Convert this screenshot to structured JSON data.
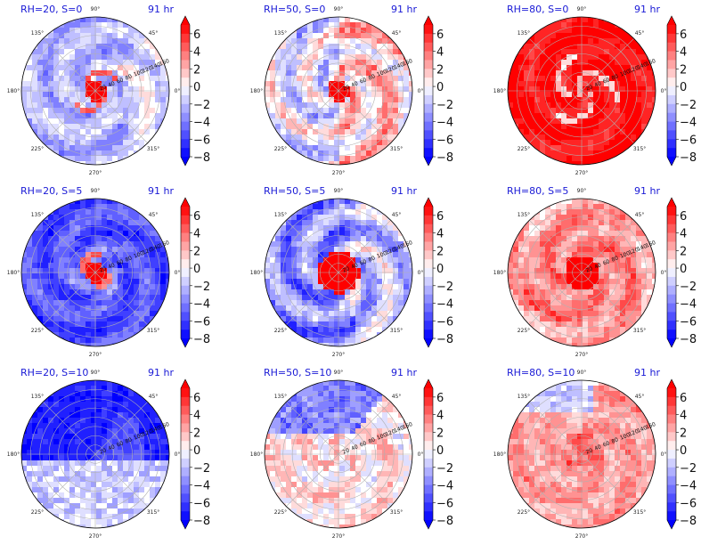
{
  "figure": {
    "time_label": "91 hr",
    "colormap": [
      "#0000ff",
      "#ffffff",
      "#ff0000"
    ]
  },
  "chart_data": [
    {
      "type": "heatmap",
      "projection": "polar",
      "title": "RH=20, S=0",
      "rh": 20,
      "s": 0,
      "pattern": "neutral_spiral",
      "angular_ticks": [
        "0°",
        "45°",
        "90°",
        "135°",
        "180°",
        "225°",
        "270°",
        "315°"
      ],
      "radial_ticks": [
        20,
        40,
        60,
        80,
        100,
        120,
        140,
        160
      ],
      "colorbar": {
        "ticks": [
          6,
          4,
          2,
          0,
          -2,
          -4,
          -6,
          -8
        ],
        "range": [
          -8,
          7
        ],
        "extend": "both"
      }
    },
    {
      "type": "heatmap",
      "projection": "polar",
      "title": "RH=50, S=0",
      "rh": 50,
      "s": 0,
      "pattern": "mixed_halves",
      "angular_ticks": [
        "0°",
        "45°",
        "90°",
        "135°",
        "180°",
        "225°",
        "270°",
        "315°"
      ],
      "radial_ticks": [
        20,
        40,
        60,
        80,
        100,
        120,
        140,
        160
      ],
      "colorbar": {
        "ticks": [
          6,
          4,
          2,
          0,
          -2,
          -4,
          -6,
          -8
        ],
        "range": [
          -8,
          7
        ],
        "extend": "both"
      }
    },
    {
      "type": "heatmap",
      "projection": "polar",
      "title": "RH=80, S=0",
      "rh": 80,
      "s": 0,
      "pattern": "warm",
      "angular_ticks": [
        "0°",
        "45°",
        "90°",
        "135°",
        "180°",
        "225°",
        "270°",
        "315°"
      ],
      "radial_ticks": [
        20,
        40,
        60,
        80,
        100,
        120,
        140,
        160
      ],
      "colorbar": {
        "ticks": [
          6,
          4,
          2,
          0,
          -2,
          -4,
          -6,
          -8
        ],
        "range": [
          -8,
          7
        ],
        "extend": "both"
      }
    },
    {
      "type": "heatmap",
      "projection": "polar",
      "title": "RH=20, S=5",
      "rh": 20,
      "s": 5,
      "pattern": "cold_core_warm",
      "angular_ticks": [
        "0°",
        "45°",
        "90°",
        "135°",
        "180°",
        "225°",
        "270°",
        "315°"
      ],
      "radial_ticks": [
        20,
        40,
        60,
        80,
        100,
        120,
        140,
        160
      ],
      "colorbar": {
        "ticks": [
          6,
          4,
          2,
          0,
          -2,
          -4,
          -6,
          -8
        ],
        "range": [
          -8,
          7
        ],
        "extend": "both"
      }
    },
    {
      "type": "heatmap",
      "projection": "polar",
      "title": "RH=50, S=5",
      "rh": 50,
      "s": 5,
      "pattern": "cool_spiral_core",
      "angular_ticks": [
        "0°",
        "45°",
        "90°",
        "135°",
        "180°",
        "225°",
        "270°",
        "315°"
      ],
      "radial_ticks": [
        20,
        40,
        60,
        80,
        100,
        120,
        140,
        160
      ],
      "colorbar": {
        "ticks": [
          6,
          4,
          2,
          0,
          -2,
          -4,
          -6,
          -8
        ],
        "range": [
          -8,
          7
        ],
        "extend": "both"
      }
    },
    {
      "type": "heatmap",
      "projection": "polar",
      "title": "RH=80, S=5",
      "rh": 80,
      "s": 5,
      "pattern": "warm_light",
      "angular_ticks": [
        "0°",
        "45°",
        "90°",
        "135°",
        "180°",
        "225°",
        "270°",
        "315°"
      ],
      "radial_ticks": [
        20,
        40,
        60,
        80,
        100,
        120,
        140,
        160
      ],
      "colorbar": {
        "ticks": [
          6,
          4,
          2,
          0,
          -2,
          -4,
          -6,
          -8
        ],
        "range": [
          -8,
          7
        ],
        "extend": "both"
      }
    },
    {
      "type": "heatmap",
      "projection": "polar",
      "title": "RH=20, S=10",
      "rh": 20,
      "s": 10,
      "pattern": "cold_top",
      "angular_ticks": [
        "0°",
        "45°",
        "90°",
        "135°",
        "180°",
        "225°",
        "270°",
        "315°"
      ],
      "radial_ticks": [
        20,
        40,
        60,
        80,
        100,
        120,
        140,
        160
      ],
      "colorbar": {
        "ticks": [
          6,
          4,
          2,
          0,
          -2,
          -4,
          -6,
          -8
        ],
        "range": [
          -8,
          7
        ],
        "extend": "both"
      }
    },
    {
      "type": "heatmap",
      "projection": "polar",
      "title": "RH=50, S=10",
      "rh": 50,
      "s": 10,
      "pattern": "mixed_cool_top",
      "angular_ticks": [
        "0°",
        "45°",
        "90°",
        "135°",
        "180°",
        "225°",
        "270°",
        "315°"
      ],
      "radial_ticks": [
        20,
        40,
        60,
        80,
        100,
        120,
        140,
        160
      ],
      "colorbar": {
        "ticks": [
          6,
          4,
          2,
          0,
          -2,
          -4,
          -6,
          -8
        ],
        "range": [
          -8,
          7
        ],
        "extend": "both"
      }
    },
    {
      "type": "heatmap",
      "projection": "polar",
      "title": "RH=80, S=10",
      "rh": 80,
      "s": 10,
      "pattern": "warm_broad",
      "angular_ticks": [
        "0°",
        "45°",
        "90°",
        "135°",
        "180°",
        "225°",
        "270°",
        "315°"
      ],
      "radial_ticks": [
        20,
        40,
        60,
        80,
        100,
        120,
        140,
        160
      ],
      "colorbar": {
        "ticks": [
          6,
          4,
          2,
          0,
          -2,
          -4,
          -6,
          -8
        ],
        "range": [
          -8,
          7
        ],
        "extend": "both"
      }
    }
  ]
}
